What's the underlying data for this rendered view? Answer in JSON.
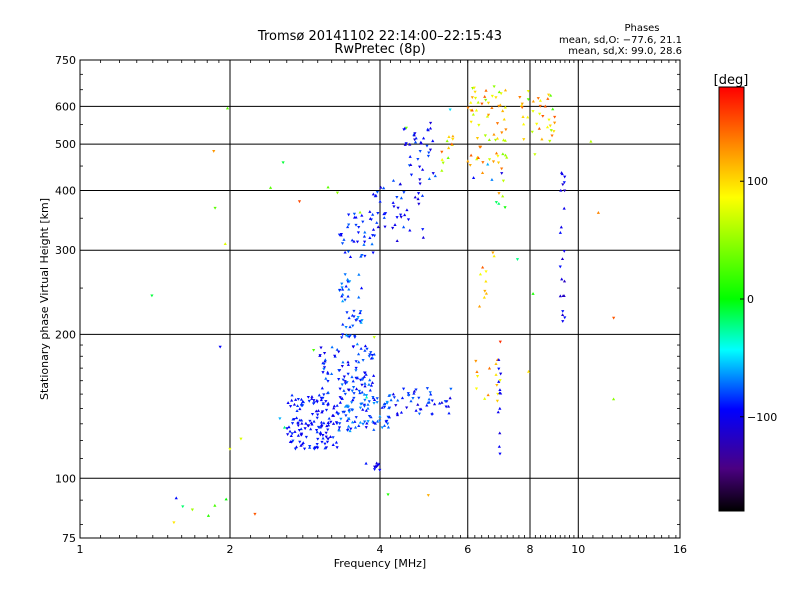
{
  "chart_data": {
    "type": "scatter",
    "title": "Tromsø 20141102 22:14:00–22:15:43",
    "subtitle": "RwPretec (8p)",
    "stats": {
      "header": "Phases",
      "line_o": "mean, sd,O: −77.6, 21.1",
      "line_x": "mean, sd,X:  99.0, 28.6"
    },
    "xlabel": "Frequency [MHz]",
    "ylabel": "Stationary phase Virtual Height [km]",
    "x_scale": "log",
    "y_scale": "log",
    "xlim": [
      1,
      16
    ],
    "ylim": [
      75,
      750
    ],
    "x_ticks": [
      1,
      2,
      4,
      6,
      8,
      10,
      16
    ],
    "x_tick_labels": [
      "1",
      "2",
      "4",
      "6",
      "8",
      "10",
      "16"
    ],
    "y_ticks": [
      75,
      100,
      200,
      300,
      400,
      500,
      600,
      750
    ],
    "y_tick_labels": [
      "75",
      "100",
      "200",
      "300",
      "400",
      "500",
      "600",
      "750"
    ],
    "grid": true,
    "colorbar": {
      "label": "[deg]",
      "min": -180,
      "max": 180,
      "ticks": [
        100,
        0,
        -100
      ],
      "tick_labels": [
        "100",
        "0",
        "−100"
      ],
      "colors": [
        "#ff0000",
        "#ff8c00",
        "#ffff00",
        "#00ff00",
        "#00ffff",
        "#0000ff",
        "#4b0082",
        "#000000"
      ]
    },
    "clusters": [
      {
        "x": [
          2.6,
          3.3
        ],
        "y": [
          115,
          150
        ],
        "phase": [
          -105,
          -80
        ],
        "n": 140
      },
      {
        "x": [
          3.3,
          4.2
        ],
        "y": [
          125,
          150
        ],
        "phase": [
          -100,
          -60
        ],
        "n": 90
      },
      {
        "x": [
          4.2,
          5.6
        ],
        "y": [
          135,
          155
        ],
        "phase": [
          -110,
          -70
        ],
        "n": 45
      },
      {
        "x": [
          3.0,
          3.9
        ],
        "y": [
          150,
          190
        ],
        "phase": [
          -105,
          -70
        ],
        "n": 90
      },
      {
        "x": [
          3.3,
          3.7
        ],
        "y": [
          190,
          270
        ],
        "phase": [
          -95,
          -60
        ],
        "n": 45
      },
      {
        "x": [
          3.3,
          3.9
        ],
        "y": [
          290,
          360
        ],
        "phase": [
          -100,
          -70
        ],
        "n": 35
      },
      {
        "x": [
          3.8,
          4.9
        ],
        "y": [
          310,
          420
        ],
        "phase": [
          -110,
          -75
        ],
        "n": 45
      },
      {
        "x": [
          4.4,
          5.2
        ],
        "y": [
          420,
          560
        ],
        "phase": [
          -110,
          -70
        ],
        "n": 35
      },
      {
        "x": [
          5.3,
          5.7
        ],
        "y": [
          440,
          520
        ],
        "phase": [
          30,
          150
        ],
        "n": 12
      },
      {
        "x": [
          6.0,
          7.2
        ],
        "y": [
          450,
          660
        ],
        "phase": [
          40,
          150
        ],
        "n": 60
      },
      {
        "x": [
          7.6,
          9.0
        ],
        "y": [
          500,
          650
        ],
        "phase": [
          20,
          150
        ],
        "n": 35
      },
      {
        "x": [
          6.2,
          7.0
        ],
        "y": [
          140,
          180
        ],
        "phase": [
          60,
          140
        ],
        "n": 14
      },
      {
        "x": [
          6.3,
          6.8
        ],
        "y": [
          220,
          300
        ],
        "phase": [
          60,
          150
        ],
        "n": 10
      },
      {
        "x": [
          6.4,
          7.2
        ],
        "y": [
          360,
          470
        ],
        "phase": [
          -110,
          140
        ],
        "n": 12
      },
      {
        "x": [
          9.2,
          9.4
        ],
        "y": [
          190,
          450
        ],
        "phase": [
          -120,
          -90
        ],
        "n": 22
      },
      {
        "x": [
          6.9,
          7.0
        ],
        "y": [
          110,
          180
        ],
        "phase": [
          -110,
          -90
        ],
        "n": 12
      },
      {
        "x": [
          3.9,
          4.0
        ],
        "y": [
          104,
          108
        ],
        "phase": [
          -110,
          -90
        ],
        "n": 8
      },
      {
        "x": [
          1.5,
          2.3
        ],
        "y": [
          80,
          95
        ],
        "phase": [
          -110,
          170
        ],
        "n": 8
      },
      {
        "x": [
          1.3,
          12.5
        ],
        "y": [
          90,
          600
        ],
        "phase": [
          -120,
          170
        ],
        "n": 35
      }
    ]
  }
}
